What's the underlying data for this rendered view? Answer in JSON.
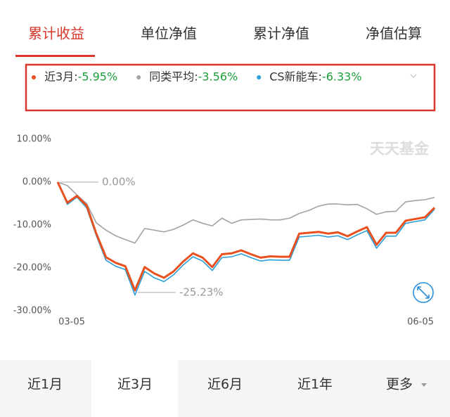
{
  "tabs": [
    "累计收益",
    "单位净值",
    "累计净值",
    "净值估算"
  ],
  "periods": [
    "近1月",
    "近3月",
    "近6月",
    "近1年",
    "更多"
  ],
  "watermark": "天天基金",
  "chart_data": {
    "type": "line",
    "categories": [
      "03-05",
      null,
      null,
      null,
      null,
      null,
      null,
      null,
      null,
      null,
      null,
      null,
      null,
      null,
      null,
      null,
      null,
      null,
      null,
      null,
      null,
      null,
      null,
      null,
      null,
      null,
      null,
      null,
      null,
      null,
      null,
      null,
      null,
      null,
      null,
      null,
      null,
      null,
      null,
      "06-05"
    ],
    "series": [
      {
        "name": "同类平均:",
        "color": "#a3a3a3",
        "summary": {
          "value": -3.56,
          "label": "-3.56%"
        },
        "values": [
          0,
          -0.8,
          -3,
          -5,
          -9.5,
          -11.2,
          -12.5,
          -13.4,
          -14.2,
          -10.8,
          -11.2,
          -11.6,
          -11,
          -10,
          -8.8,
          -9.6,
          -10.2,
          -8.4,
          -9.6,
          -8.8,
          -8.7,
          -8.6,
          -8.8,
          -8.8,
          -8.4,
          -7.3,
          -6.6,
          -5.6,
          -5.1,
          -5.1,
          -5.3,
          -5.2,
          -6.2,
          -7.5,
          -6.9,
          -6.8,
          -4.6,
          -4.3,
          -4.1,
          -3.56
        ]
      },
      {
        "name": "CS新能车:",
        "color": "#2a9fd8",
        "summary": {
          "value": -6.33,
          "label": "-6.33%"
        },
        "values": [
          0,
          -5.2,
          -3.5,
          -6,
          -12.5,
          -18.2,
          -19.6,
          -20.4,
          -26.3,
          -20.8,
          -22.3,
          -23.2,
          -21.6,
          -19.3,
          -17.4,
          -18.4,
          -20.6,
          -17.6,
          -17.4,
          -16.7,
          -17.6,
          -18.4,
          -18.1,
          -18.2,
          -18.2,
          -12.8,
          -12.6,
          -12.4,
          -12.8,
          -12.5,
          -13.4,
          -12.3,
          -11.3,
          -15.4,
          -12.6,
          -12.6,
          -9.6,
          -9.2,
          -8.8,
          -6.33
        ]
      },
      {
        "name": "近3月:",
        "color": "#e8501f",
        "summary": {
          "value": -5.95,
          "label": "-5.95%"
        },
        "values": [
          0,
          -4.8,
          -3.2,
          -5.5,
          -12,
          -17.5,
          -18.8,
          -19.6,
          -25.23,
          -19.8,
          -21.3,
          -22.3,
          -20.8,
          -18.5,
          -16.6,
          -17.6,
          -19.8,
          -16.8,
          -16.6,
          -15.9,
          -16.8,
          -17.6,
          -17.3,
          -17.4,
          -17.4,
          -12,
          -11.8,
          -11.6,
          -12,
          -11.7,
          -12.6,
          -11.5,
          -10.5,
          -14.6,
          -11.8,
          -11.8,
          -9,
          -8.6,
          -8.2,
          -5.95
        ]
      }
    ],
    "legend_order": [
      2,
      0,
      1
    ],
    "annotations": [
      {
        "index": 0,
        "value": 0,
        "label": "0.00%"
      },
      {
        "index": 8,
        "value": -25.23,
        "label": "-25.23%"
      }
    ],
    "ylim": [
      -30,
      10
    ],
    "yticks": [
      {
        "value": 10,
        "label": "10.00%"
      },
      {
        "value": 0,
        "label": "0.00%"
      },
      {
        "value": -10,
        "label": "-10.00%"
      },
      {
        "value": -20,
        "label": "-20.00%"
      },
      {
        "value": -30,
        "label": "-30.00%"
      }
    ],
    "grid": false
  }
}
